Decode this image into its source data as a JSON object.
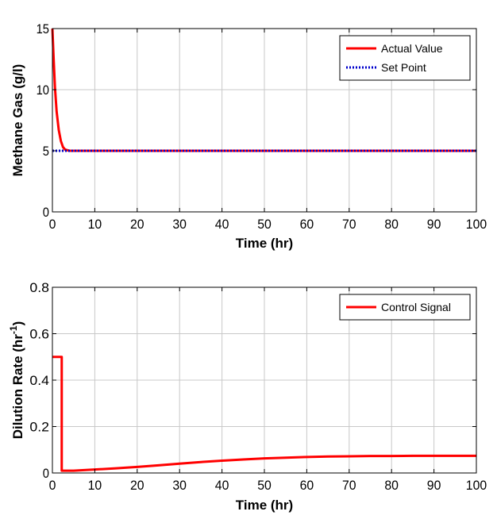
{
  "chart_data": [
    {
      "type": "line",
      "title": "",
      "xlabel": "Time (hr)",
      "ylabel": "Methane Gas (g/l)",
      "xlim": [
        0,
        100
      ],
      "ylim": [
        0,
        15
      ],
      "xticks": [
        "0",
        "10",
        "20",
        "30",
        "40",
        "50",
        "60",
        "70",
        "80",
        "90",
        "100"
      ],
      "yticks": [
        "0",
        "5",
        "10",
        "15"
      ],
      "grid": true,
      "legend_position": "top-right",
      "series": [
        {
          "name": "Actual Value",
          "color": "#ff0000",
          "style": "solid",
          "x": [
            0,
            0.3,
            0.6,
            1.0,
            1.5,
            2.0,
            2.5,
            3.0,
            4,
            10,
            20,
            30,
            40,
            50,
            60,
            70,
            80,
            90,
            100
          ],
          "y": [
            15,
            12.5,
            10.2,
            8.2,
            6.7,
            5.8,
            5.3,
            5.1,
            5.0,
            5.0,
            5.0,
            5.0,
            5.0,
            5.0,
            5.0,
            5.0,
            5.0,
            5.0,
            5.0
          ]
        },
        {
          "name": "Set Point",
          "color": "#0000cc",
          "style": "dotted",
          "x": [
            0,
            100
          ],
          "y": [
            5,
            5
          ]
        }
      ]
    },
    {
      "type": "line",
      "title": "",
      "xlabel": "Time (hr)",
      "ylabel": "Dilution Rate (hr",
      "ylabel_superscript": "-1",
      "ylabel_suffix": ")",
      "xlim": [
        0,
        100
      ],
      "ylim": [
        0,
        0.8
      ],
      "xticks": [
        "0",
        "10",
        "20",
        "30",
        "40",
        "50",
        "60",
        "70",
        "80",
        "90",
        "100"
      ],
      "yticks": [
        "0",
        "0.2",
        "0.4",
        "0.6",
        "0.8"
      ],
      "grid": true,
      "legend_position": "top-right",
      "series": [
        {
          "name": "Control Signal",
          "color": "#ff0000",
          "style": "solid",
          "x": [
            0,
            2.2,
            2.2,
            5,
            10,
            15,
            20,
            25,
            30,
            35,
            40,
            45,
            50,
            55,
            60,
            65,
            70,
            75,
            80,
            85,
            90,
            95,
            100
          ],
          "y": [
            0.5,
            0.5,
            0.01,
            0.01,
            0.015,
            0.02,
            0.026,
            0.033,
            0.04,
            0.047,
            0.053,
            0.058,
            0.063,
            0.066,
            0.069,
            0.071,
            0.072,
            0.073,
            0.073,
            0.074,
            0.074,
            0.074,
            0.074
          ]
        }
      ]
    }
  ]
}
